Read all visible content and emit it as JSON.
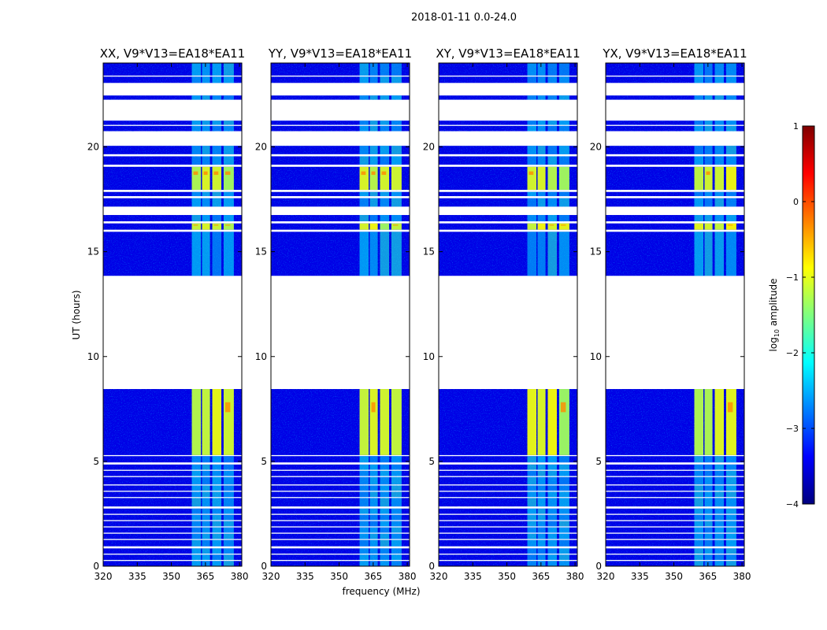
{
  "figure": {
    "suptitle": "2018-01-11 0.0-24.0",
    "xlabel": "frequency (MHz)",
    "ylabel": "UT (hours)"
  },
  "colorbar": {
    "label_base": "log",
    "label_sub": "10",
    "label_rest": " amplitude",
    "range": [
      -4,
      1
    ],
    "ticks": [
      "1",
      "0",
      "−1",
      "−2",
      "−3",
      "−4"
    ],
    "colormap": "jet",
    "colors": [
      "#00007f",
      "#0000ff",
      "#007fff",
      "#00ffff",
      "#7fff7f",
      "#ffff00",
      "#ff7f00",
      "#ff0000",
      "#7f0000"
    ]
  },
  "chart_data": {
    "type": "heatmap",
    "x_range": [
      320,
      381
    ],
    "y_range": [
      0,
      24
    ],
    "x_ticks": [
      "320",
      "335",
      "350",
      "365",
      "380"
    ],
    "y_ticks": [
      "0",
      "5",
      "10",
      "15",
      "20"
    ],
    "x_tick_values": [
      320,
      335,
      350,
      365,
      380
    ],
    "y_tick_values": [
      0,
      5,
      10,
      15,
      20
    ],
    "background_value": -3.5,
    "rfi_band_mhz": [
      359,
      378
    ],
    "rfi_channels_mhz": [
      [
        359,
        363
      ],
      [
        363.5,
        367
      ],
      [
        368,
        372
      ],
      [
        373,
        377.5
      ]
    ],
    "panels": [
      {
        "title": "XX, V9*V13=EA18*EA11"
      },
      {
        "title": "YY, V9*V13=EA18*EA11"
      },
      {
        "title": "XY, V9*V13=EA18*EA11"
      },
      {
        "title": "YX, V9*V13=EA18*EA11"
      }
    ],
    "data_segments_ut": [
      [
        0.0,
        0.25
      ],
      [
        0.3,
        0.55
      ],
      [
        0.6,
        0.85
      ],
      [
        0.95,
        1.25
      ],
      [
        1.3,
        1.55
      ],
      [
        1.6,
        1.85
      ],
      [
        1.9,
        2.15
      ],
      [
        2.2,
        2.45
      ],
      [
        2.5,
        2.75
      ],
      [
        2.85,
        3.25
      ],
      [
        3.3,
        3.55
      ],
      [
        3.6,
        3.85
      ],
      [
        3.9,
        4.25
      ],
      [
        4.3,
        4.55
      ],
      [
        4.6,
        4.85
      ],
      [
        4.95,
        5.25
      ],
      [
        5.3,
        8.45
      ],
      [
        13.85,
        15.95
      ],
      [
        16.05,
        16.35
      ],
      [
        16.45,
        16.75
      ],
      [
        17.15,
        17.55
      ],
      [
        17.65,
        17.85
      ],
      [
        17.95,
        19.05
      ],
      [
        19.15,
        19.55
      ],
      [
        19.65,
        20.05
      ],
      [
        20.75,
        21.0
      ],
      [
        21.05,
        21.25
      ],
      [
        22.25,
        22.45
      ],
      [
        23.05,
        23.35
      ],
      [
        23.4,
        24.0
      ]
    ],
    "bright_segments_ut": [
      [
        5.3,
        8.45
      ],
      [
        15.95,
        16.35
      ],
      [
        18.1,
        19.05
      ]
    ]
  }
}
